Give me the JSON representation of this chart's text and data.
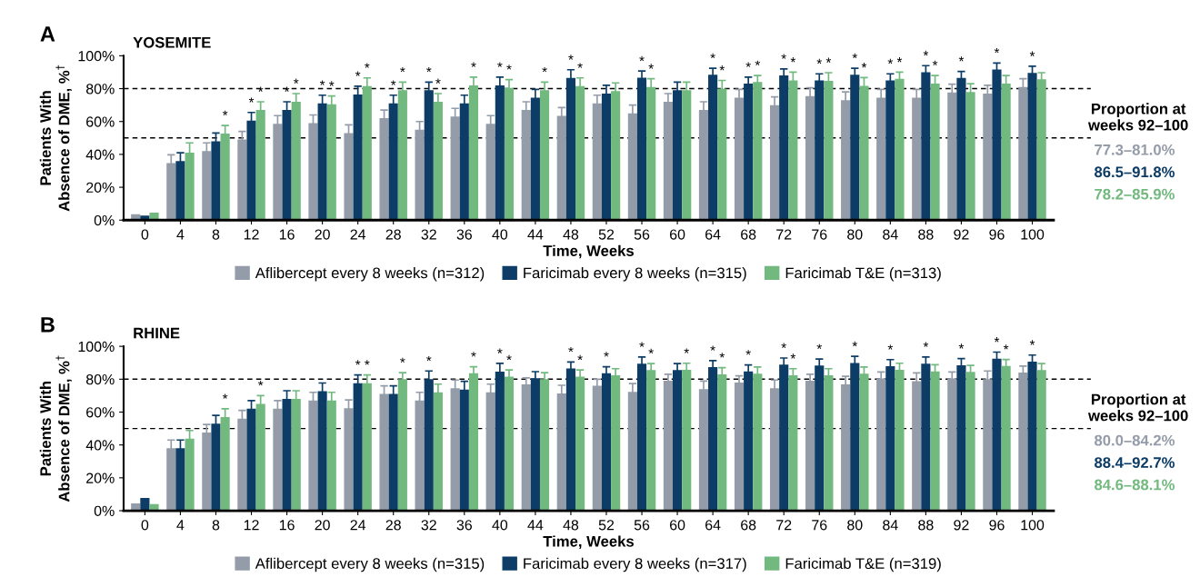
{
  "chart_data": [
    {
      "type": "bar",
      "title": "YOSEMITE",
      "ylabel": "Patients With\nAbsence of DME, %$^{†}$",
      "xlabel": "Time, Weeks",
      "categories": [
        "0",
        "4",
        "8",
        "12",
        "16",
        "20",
        "24",
        "28",
        "32",
        "36",
        "40",
        "44",
        "48",
        "52",
        "56",
        "60",
        "64",
        "68",
        "72",
        "76",
        "80",
        "84",
        "88",
        "92",
        "96",
        "100"
      ],
      "ylim": [
        0,
        100
      ],
      "yticks": [
        {
          "value": 0,
          "label": "0%"
        },
        {
          "value": 20,
          "label": "20%"
        },
        {
          "value": 40,
          "label": "40%"
        },
        {
          "value": 60,
          "label": "60%"
        },
        {
          "value": 80,
          "label": "80%"
        },
        {
          "value": 100,
          "label": "100%"
        }
      ],
      "grid": false,
      "legend": "bottom",
      "ref_lines": [
        {
          "axis": "y",
          "value": 80,
          "line_style": "dashed",
          "color": "#000000"
        },
        {
          "axis": "y",
          "value": 50,
          "line_style": "dashed",
          "color": "#000000"
        }
      ],
      "annotations": [
        "A",
        "Proportion at\nweeks 92–100",
        "77.3–81.0%",
        "86.5–91.8%",
        "78.2–85.9%"
      ],
      "series": [
        {
          "name": "Aflibercept every 8 weeks (n=312)",
          "color": "#939ca8",
          "values": [
            3.6,
            34.7,
            42,
            49,
            58.6,
            59,
            53,
            62,
            55,
            63,
            58.6,
            67,
            63.5,
            71,
            65,
            72,
            67,
            74.5,
            70,
            75.5,
            73,
            74.5,
            74.5,
            77.7,
            77,
            81
          ],
          "errors": [
            null,
            5,
            5,
            5,
            5,
            5,
            5,
            5,
            5,
            5,
            5,
            5,
            5,
            5,
            5,
            5,
            5,
            5,
            5,
            5,
            5,
            5,
            5,
            5,
            5,
            5
          ],
          "value_labels": [
            null,
            null,
            null,
            null,
            null,
            null,
            null,
            null,
            null,
            null,
            null,
            null,
            null,
            null,
            null,
            null,
            null,
            null,
            null,
            null,
            null,
            null,
            null,
            null,
            null,
            null
          ]
        },
        {
          "name": "Faricimab every 8 weeks (n=315)",
          "color": "#0d3d66",
          "values": [
            2.8,
            36,
            48,
            60.5,
            67,
            71,
            76.5,
            71,
            79,
            71,
            82,
            74.5,
            86.5,
            77,
            86.7,
            79,
            88.4,
            83,
            88,
            85,
            88.4,
            85,
            90,
            86.5,
            91.6,
            89.6
          ],
          "errors": [
            null,
            5,
            5,
            5,
            5,
            5,
            5,
            5,
            5,
            5,
            5,
            5,
            5,
            5,
            4,
            5,
            4,
            4,
            4,
            4,
            4,
            4,
            4,
            4,
            4,
            4
          ],
          "value_labels": [
            null,
            null,
            null,
            "*",
            "*",
            "*",
            "*",
            "*",
            "*",
            null,
            "*",
            null,
            "*",
            null,
            "*",
            null,
            "*",
            "*",
            "*",
            "*",
            "*",
            "*",
            "*",
            "*",
            "*",
            "*"
          ]
        },
        {
          "name": "Faricimab T&E (n=313)",
          "color": "#72b97f",
          "values": [
            4.6,
            41,
            52.6,
            67,
            72,
            70.5,
            81.5,
            79,
            72,
            82,
            80.5,
            79,
            81.5,
            78.5,
            81,
            79,
            80,
            84,
            85,
            84.7,
            81.7,
            86,
            83,
            78,
            83,
            85.7
          ],
          "errors": [
            null,
            6,
            5,
            5,
            5,
            5,
            5,
            5,
            5,
            5,
            5,
            5,
            5,
            5,
            5,
            5,
            5,
            4,
            5,
            5,
            5,
            4,
            5,
            5,
            5,
            4
          ],
          "value_labels": [
            null,
            null,
            "*",
            "*",
            "*",
            "*",
            "*",
            "*",
            "*",
            "*",
            "*",
            "*",
            "*",
            null,
            "*",
            null,
            "*",
            "*",
            "*",
            "*",
            "*",
            "*",
            "*",
            null,
            null,
            null
          ]
        }
      ]
    },
    {
      "type": "bar",
      "title": "RHINE",
      "ylabel": "Patients With\nAbsence of DME, %$^{†}$",
      "xlabel": "Time, Weeks",
      "categories": [
        "0",
        "4",
        "8",
        "12",
        "16",
        "20",
        "24",
        "28",
        "32",
        "36",
        "40",
        "44",
        "48",
        "52",
        "56",
        "60",
        "64",
        "68",
        "72",
        "76",
        "80",
        "84",
        "88",
        "92",
        "96",
        "100"
      ],
      "ylim": [
        0,
        100
      ],
      "yticks": [
        {
          "value": 0,
          "label": "0%"
        },
        {
          "value": 20,
          "label": "20%"
        },
        {
          "value": 40,
          "label": "40%"
        },
        {
          "value": 60,
          "label": "60%"
        },
        {
          "value": 80,
          "label": "80%"
        },
        {
          "value": 100,
          "label": "100%"
        }
      ],
      "grid": false,
      "legend": "bottom",
      "ref_lines": [
        {
          "axis": "y",
          "value": 80,
          "line_style": "dashed",
          "color": "#000000"
        },
        {
          "axis": "y",
          "value": 50,
          "line_style": "dashed",
          "color": "#000000"
        }
      ],
      "annotations": [
        "B",
        "Proportion at\nweeks 92–100",
        "80.0–84.2%",
        "88.4–92.7%",
        "84.6–88.1%"
      ],
      "series": [
        {
          "name": "Aflibercept every 8 weeks (n=315)",
          "color": "#939ca8",
          "values": [
            4.4,
            38,
            47.5,
            56,
            62,
            67,
            62.4,
            71,
            67,
            74.5,
            72,
            76.8,
            71.3,
            76,
            72.3,
            79,
            73.9,
            78,
            74.5,
            79,
            76.8,
            80.4,
            78.8,
            80.4,
            80,
            84
          ],
          "errors": [
            null,
            5,
            5,
            5,
            5,
            5,
            5,
            5,
            5,
            5,
            5,
            4,
            5,
            4,
            5,
            4,
            5,
            4,
            5,
            4,
            5,
            4,
            5,
            4,
            5,
            4
          ],
          "value_labels": [
            null,
            null,
            null,
            null,
            null,
            null,
            null,
            null,
            null,
            null,
            null,
            null,
            null,
            null,
            null,
            null,
            null,
            null,
            null,
            null,
            null,
            null,
            null,
            null,
            null,
            null
          ]
        },
        {
          "name": "Faricimab every 8 weeks (n=317)",
          "color": "#0d3d66",
          "values": [
            7.7,
            38,
            53,
            62,
            68,
            72.7,
            77.6,
            71,
            80,
            73.7,
            84.6,
            80.6,
            86.5,
            83.6,
            89.5,
            85.5,
            87.3,
            84.7,
            88.9,
            88.3,
            89.9,
            87.9,
            89.5,
            88.5,
            92.5,
            90.7
          ],
          "errors": [
            null,
            5,
            5,
            5,
            5,
            5,
            5,
            5,
            5,
            5,
            5,
            4,
            4,
            4,
            4,
            4,
            4,
            4,
            4,
            4,
            4,
            4,
            4,
            4,
            4,
            4
          ],
          "value_labels": [
            null,
            null,
            null,
            null,
            null,
            null,
            "*",
            null,
            "*",
            null,
            "*",
            null,
            "*",
            "*",
            "*",
            null,
            "*",
            "*",
            "*",
            "*",
            "*",
            "*",
            "*",
            "*",
            "*",
            "*"
          ]
        },
        {
          "name": "Faricimab T&E (n=319)",
          "color": "#72b97f",
          "values": [
            4,
            43.8,
            57,
            65,
            68,
            67,
            77.6,
            80,
            72,
            83.6,
            81.6,
            80,
            81.6,
            82.4,
            85.5,
            85.7,
            83,
            83.4,
            82.4,
            82.4,
            83.4,
            85.7,
            84.8,
            84.4,
            88,
            85.5
          ],
          "errors": [
            null,
            5,
            5,
            5,
            5,
            5,
            5,
            4,
            5,
            4,
            4,
            4,
            4,
            4,
            4,
            4,
            4,
            4,
            4,
            4,
            4,
            4,
            4,
            4,
            4,
            4
          ],
          "value_labels": [
            null,
            null,
            "*",
            "*",
            null,
            null,
            "*",
            "*",
            null,
            "*",
            "*",
            null,
            "*",
            null,
            "*",
            "*",
            "*",
            null,
            "*",
            null,
            null,
            null,
            null,
            null,
            "*",
            null
          ]
        }
      ]
    }
  ]
}
